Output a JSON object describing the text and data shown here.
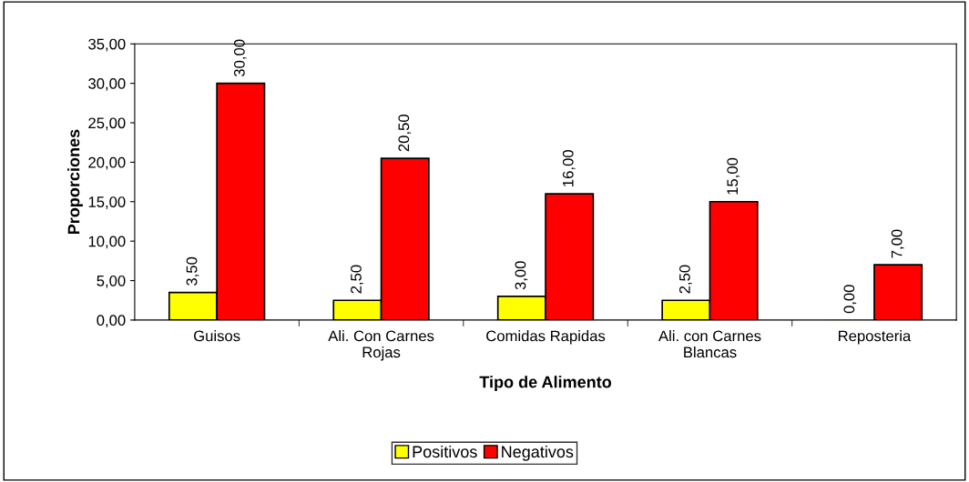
{
  "chart_data": {
    "type": "bar",
    "xlabel": "Tipo de Alimento",
    "ylabel": "Proporciones",
    "categories": [
      "Guisos",
      "Ali. Con Carnes Rojas",
      "Comidas Rapidas",
      "Ali. con Carnes Blancas",
      "Reposteria"
    ],
    "series": [
      {
        "name": "Positivos",
        "color": "#ffff00",
        "values": [
          3.5,
          2.5,
          3.0,
          2.5,
          0.0
        ],
        "value_labels": [
          "3,50",
          "2,50",
          "3,00",
          "2,50",
          "0,00"
        ]
      },
      {
        "name": "Negativos",
        "color": "#ff0000",
        "values": [
          30.0,
          20.5,
          16.0,
          15.0,
          7.0
        ],
        "value_labels": [
          "30,00",
          "20,50",
          "16,00",
          "15,00",
          "7,00"
        ]
      }
    ],
    "ylim": [
      0,
      35
    ],
    "yticks": [
      {
        "value": 0,
        "label": "0,00"
      },
      {
        "value": 5,
        "label": "5,00"
      },
      {
        "value": 10,
        "label": "10,00"
      },
      {
        "value": 15,
        "label": "15,00"
      },
      {
        "value": 20,
        "label": "20,00"
      },
      {
        "value": 25,
        "label": "25,00"
      },
      {
        "value": 30,
        "label": "30,00"
      },
      {
        "value": 35,
        "label": "35,00"
      }
    ],
    "grid": false,
    "legend": "bottom"
  }
}
